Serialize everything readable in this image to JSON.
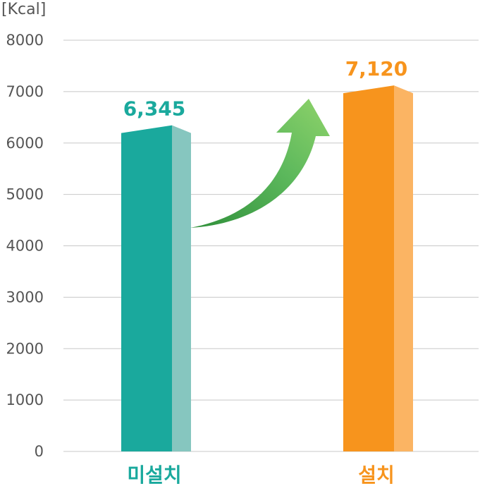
{
  "chart_data": {
    "type": "bar",
    "ylabel": "[Kcal]",
    "ylim": [
      0,
      8000
    ],
    "yticks": [
      0,
      1000,
      2000,
      3000,
      4000,
      5000,
      6000,
      7000,
      8000
    ],
    "grid": true,
    "categories": [
      "미설치",
      "설치"
    ],
    "values": [
      6345,
      7120
    ],
    "value_labels": [
      "6,345",
      "7,120"
    ],
    "colors": {
      "bar_front": [
        "#1aa99d",
        "#f7941d"
      ],
      "bar_side": [
        "#86c6bf",
        "#fbb463"
      ],
      "label": [
        "#1aa99d",
        "#f7941d"
      ],
      "arrow": "#4cae4c"
    },
    "annotation": "green-up-arrow"
  }
}
